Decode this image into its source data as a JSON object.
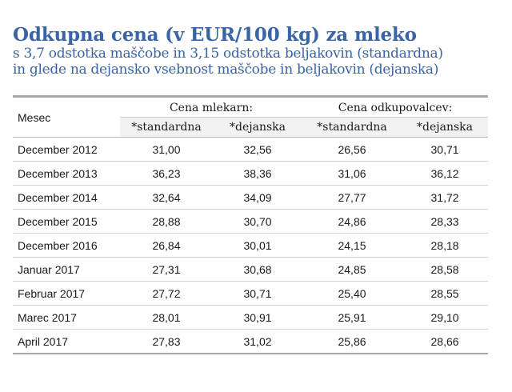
{
  "title": "Odkupna cena (v EUR/100 kg) za mleko",
  "subtitle_lines": [
    "s 3,7 odstotka maščobe in 3,15 odstotka beljakovin (standardna)",
    "in glede na dejansko vsebnost maščobe in beljakovin (dejanska)"
  ],
  "table": {
    "month_header": "Mesec",
    "groups": [
      "Cena mlekarn:",
      "Cena odkupovalcev:"
    ],
    "subheaders": [
      "*standardna",
      "*dejanska",
      "*standardna",
      "*dejanska"
    ],
    "rows": [
      {
        "month": "December 2012",
        "values": [
          "31,00",
          "32,56",
          "26,56",
          "30,71"
        ]
      },
      {
        "month": "December 2013",
        "values": [
          "36,23",
          "38,36",
          "31,06",
          "36,12"
        ]
      },
      {
        "month": "December 2014",
        "values": [
          "32,64",
          "34,09",
          "27,77",
          "31,72"
        ]
      },
      {
        "month": "December 2015",
        "values": [
          "28,88",
          "30,70",
          "24,86",
          "28,33"
        ]
      },
      {
        "month": "December 2016",
        "values": [
          "26,84",
          "30,01",
          "24,15",
          "28,18"
        ]
      },
      {
        "month": "Januar 2017",
        "values": [
          "27,31",
          "30,68",
          "24,85",
          "28,58"
        ]
      },
      {
        "month": "Februar 2017",
        "values": [
          "27,72",
          "30,71",
          "25,40",
          "28,55"
        ]
      },
      {
        "month": "Marec 2017",
        "values": [
          "28,01",
          "30,91",
          "25,91",
          "29,10"
        ]
      },
      {
        "month": "April 2017",
        "values": [
          "27,83",
          "31,02",
          "25,86",
          "28,66"
        ]
      }
    ]
  },
  "colors": {
    "title": "#3a64a8",
    "subheader_bg": "#f2f2f2",
    "rule": "#a8a8a8"
  }
}
